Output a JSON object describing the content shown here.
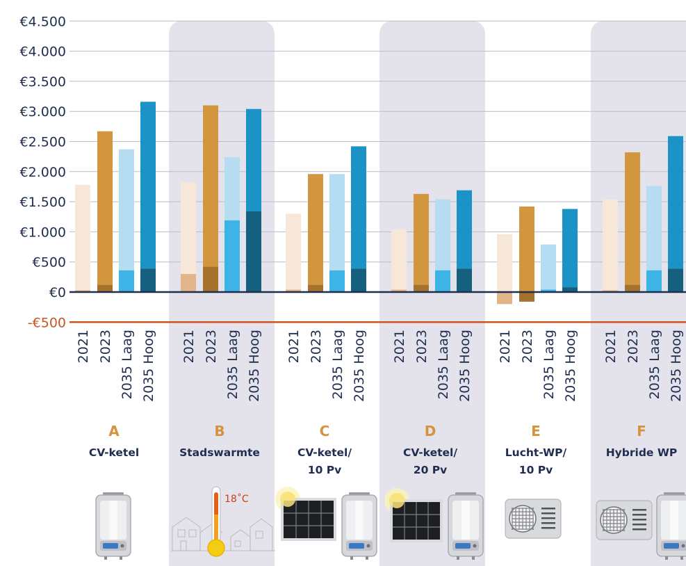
{
  "chart_data": {
    "type": "bar",
    "stacked": true,
    "title": "",
    "xlabel": "",
    "ylabel": "",
    "ylim": [
      -500,
      4500
    ],
    "yticks": [
      -500,
      0,
      500,
      1000,
      1500,
      2000,
      2500,
      3000,
      3500,
      4000,
      4500
    ],
    "ytick_labels": [
      "-€500",
      "€0",
      "€500",
      "€1.000",
      "€1.500",
      "€2.000",
      "€2.500",
      "€3.000",
      "€3.500",
      "€4.000",
      "€4.500"
    ],
    "grid": true,
    "legend": "none",
    "bar_labels": [
      "2021",
      "2023",
      "2035 Laag",
      "2035 Hoog"
    ],
    "colors": {
      "light": [
        "#f6e7d9",
        "#d2963f",
        "#b5dcf1",
        "#1b93c6"
      ],
      "dark": [
        "#e1b589",
        "#a6702d",
        "#3eb3e6",
        "#155f7f"
      ],
      "zero_line": "#1f2d4e",
      "min_line": "#c8561f",
      "band": "#e4e3ec"
    },
    "groups": [
      {
        "letter": "A",
        "name": [
          "CV-ketel"
        ],
        "icons": [
          "boiler-icon"
        ],
        "totals": [
          1780,
          2670,
          2370,
          3160
        ],
        "dark": [
          30,
          120,
          360,
          390
        ]
      },
      {
        "letter": "B",
        "name": [
          "Stadswarmte"
        ],
        "icons": [
          "houses-icon",
          "thermometer-icon"
        ],
        "thermo_label": "18˚C",
        "totals": [
          1820,
          3100,
          2240,
          3040
        ],
        "dark": [
          300,
          420,
          1190,
          1340
        ]
      },
      {
        "letter": "C",
        "name": [
          "CV-ketel/",
          "10 Pv"
        ],
        "icons": [
          "solar-panel-icon",
          "boiler-icon"
        ],
        "totals": [
          1300,
          1960,
          1960,
          2420
        ],
        "dark": [
          40,
          120,
          360,
          390
        ]
      },
      {
        "letter": "D",
        "name": [
          "CV-ketel/",
          "20 Pv"
        ],
        "icons": [
          "solar-panel-icon",
          "boiler-icon"
        ],
        "totals": [
          1040,
          1630,
          1540,
          1690
        ],
        "dark": [
          40,
          120,
          360,
          390
        ]
      },
      {
        "letter": "E",
        "name": [
          "Lucht-WP/",
          "10 Pv"
        ],
        "icons": [
          "heat-pump-icon"
        ],
        "totals": [
          960,
          1420,
          790,
          1380
        ],
        "dark": [
          -200,
          -160,
          40,
          80
        ]
      },
      {
        "letter": "F",
        "name": [
          "Hybride WP"
        ],
        "icons": [
          "heat-pump-icon",
          "boiler-icon"
        ],
        "totals": [
          1540,
          2320,
          1760,
          2590
        ],
        "dark": [
          30,
          120,
          360,
          390
        ]
      }
    ]
  }
}
